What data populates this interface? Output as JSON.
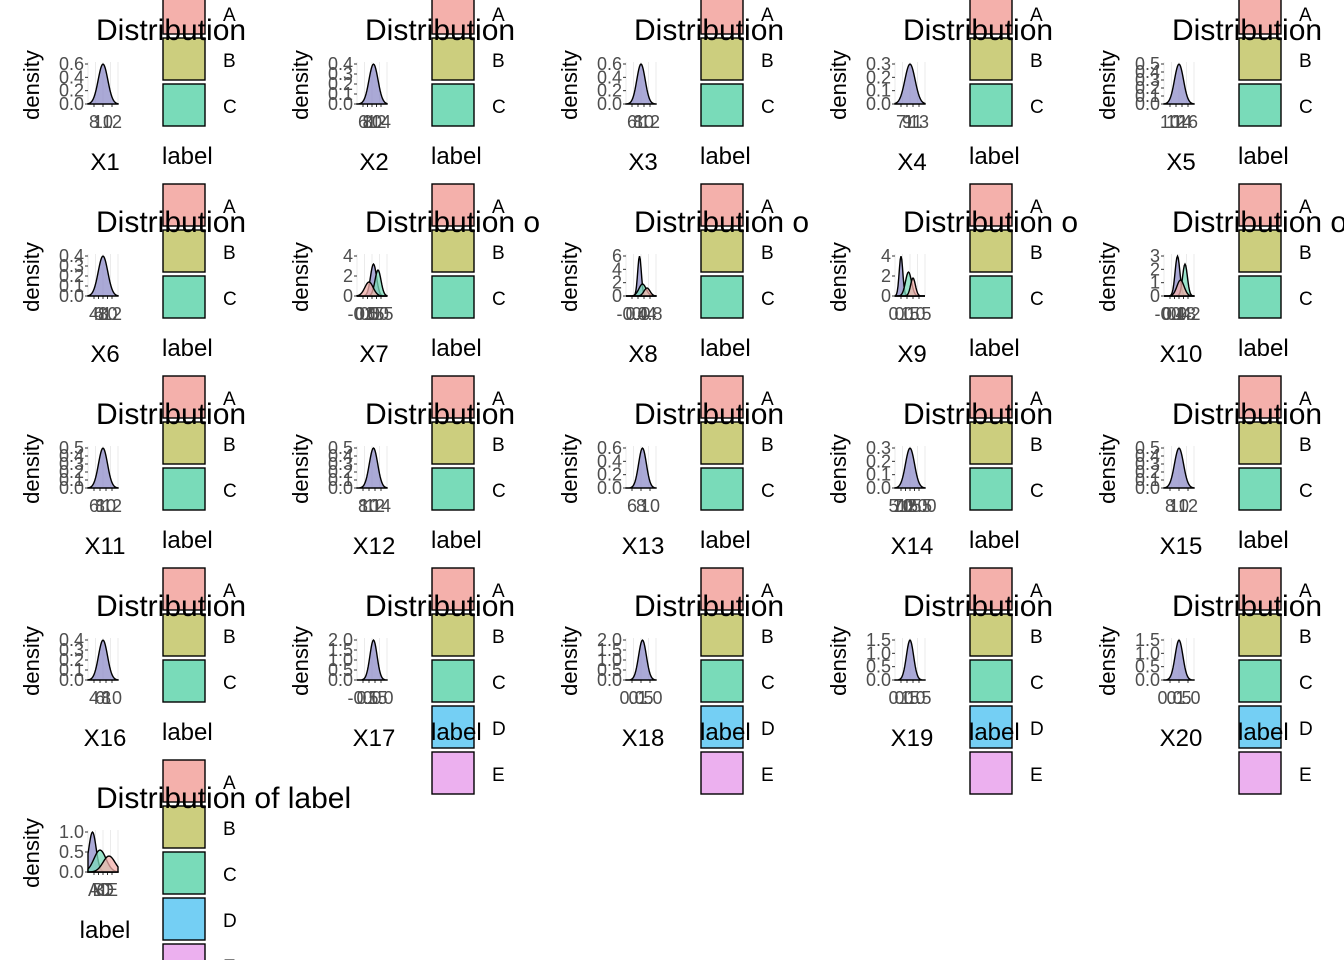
{
  "colors": {
    "A": "#f4b0ab",
    "B": "#ccce7e",
    "C": "#79dbb9",
    "D": "#74cff4",
    "E": "#ecb0ef",
    "density_fill": "#8e8cc8",
    "grid": "#ebebeb",
    "ink": "#000000",
    "tick_text": "#4d4d4d"
  },
  "chart_data": [
    {
      "type": "area",
      "title": "Distribution",
      "xlabel": "X1",
      "ylabel": "density",
      "yticks": [
        "0.0",
        "0.2",
        "0.4",
        "0.6"
      ],
      "xticks": [
        "8",
        "10",
        "12"
      ],
      "legend_title": "label",
      "legend": [
        "A",
        "B",
        "C"
      ]
    },
    {
      "type": "area",
      "title": "Distribution",
      "xlabel": "X2",
      "ylabel": "density",
      "yticks": [
        "0.0",
        "0.1",
        "0.2",
        "0.3",
        "0.4"
      ],
      "xticks": [
        "6",
        "8",
        "10",
        "12",
        "14"
      ],
      "legend_title": "label",
      "legend": [
        "A",
        "B",
        "C"
      ]
    },
    {
      "type": "area",
      "title": "Distribution",
      "xlabel": "X3",
      "ylabel": "density",
      "yticks": [
        "0.0",
        "0.2",
        "0.4",
        "0.6"
      ],
      "xticks": [
        "6",
        "8",
        "10",
        "12"
      ],
      "legend_title": "label",
      "legend": [
        "A",
        "B",
        "C"
      ]
    },
    {
      "type": "area",
      "title": "Distribution",
      "xlabel": "X4",
      "ylabel": "density",
      "yticks": [
        "0.0",
        "0.1",
        "0.2",
        "0.3"
      ],
      "xticks": [
        "7",
        "9",
        "11",
        "13"
      ],
      "legend_title": "label",
      "legend": [
        "A",
        "B",
        "C"
      ]
    },
    {
      "type": "area",
      "title": "Distribution",
      "xlabel": "X5",
      "ylabel": "density",
      "yticks": [
        "0.0",
        "0.1",
        "0.2",
        "0.3",
        "0.4",
        "0.5"
      ],
      "xticks": [
        "10",
        "12",
        "14",
        "16"
      ],
      "legend_title": "label",
      "legend": [
        "A",
        "B",
        "C"
      ]
    },
    {
      "type": "area",
      "title": "Distribution",
      "xlabel": "X6",
      "ylabel": "density",
      "yticks": [
        "0.0",
        "0.1",
        "0.2",
        "0.3",
        "0.4"
      ],
      "xticks": [
        "4",
        "6",
        "8",
        "10",
        "12"
      ],
      "legend_title": "label",
      "legend": [
        "A",
        "B",
        "C"
      ]
    },
    {
      "type": "area",
      "title": "Distribution o",
      "xlabel": "X7",
      "ylabel": "density",
      "yticks": [
        "0",
        "2",
        "4"
      ],
      "xticks": [
        "-0.5",
        "0.0",
        "0.5",
        "1.0",
        "1.5"
      ],
      "legend_title": "label",
      "legend": [
        "A",
        "B",
        "C"
      ]
    },
    {
      "type": "area",
      "title": "Distribution o",
      "xlabel": "X8",
      "ylabel": "density",
      "yticks": [
        "0",
        "2",
        "4",
        "6"
      ],
      "xticks": [
        "-0.4",
        "0.0",
        "0.4",
        "0.8"
      ],
      "legend_title": "label",
      "legend": [
        "A",
        "B",
        "C"
      ]
    },
    {
      "type": "area",
      "title": "Distribution o",
      "xlabel": "X9",
      "ylabel": "density",
      "yticks": [
        "0",
        "2",
        "4"
      ],
      "xticks": [
        "0.0",
        "0.5",
        "1.0",
        "1.5"
      ],
      "legend_title": "label",
      "legend": [
        "A",
        "B",
        "C"
      ]
    },
    {
      "type": "area",
      "title": "Distribution o",
      "xlabel": "X10",
      "ylabel": "density",
      "yticks": [
        "0",
        "1",
        "2",
        "3"
      ],
      "xticks": [
        "-0.4",
        "0.0",
        "0.4",
        "0.8",
        "1.2"
      ],
      "legend_title": "label",
      "legend": [
        "A",
        "B",
        "C"
      ]
    },
    {
      "type": "area",
      "title": "Distribution",
      "xlabel": "X11",
      "ylabel": "density",
      "yticks": [
        "0.0",
        "0.1",
        "0.2",
        "0.3",
        "0.4",
        "0.5"
      ],
      "xticks": [
        "6",
        "8",
        "10",
        "12"
      ],
      "legend_title": "label",
      "legend": [
        "A",
        "B",
        "C"
      ]
    },
    {
      "type": "area",
      "title": "Distribution",
      "xlabel": "X12",
      "ylabel": "density",
      "yticks": [
        "0.0",
        "0.1",
        "0.2",
        "0.3",
        "0.4",
        "0.5"
      ],
      "xticks": [
        "8",
        "10",
        "12",
        "14"
      ],
      "legend_title": "label",
      "legend": [
        "A",
        "B",
        "C"
      ]
    },
    {
      "type": "area",
      "title": "Distribution",
      "xlabel": "X13",
      "ylabel": "density",
      "yticks": [
        "0.0",
        "0.2",
        "0.4",
        "0.6"
      ],
      "xticks": [
        "6",
        "8",
        "10"
      ],
      "legend_title": "label",
      "legend": [
        "A",
        "B",
        "C"
      ]
    },
    {
      "type": "area",
      "title": "Distribution",
      "xlabel": "X14",
      "ylabel": "density",
      "yticks": [
        "0.0",
        "0.1",
        "0.2",
        "0.3"
      ],
      "xticks": [
        "5.0",
        "7.5",
        "10.0",
        "12.5",
        "15.0"
      ],
      "legend_title": "label",
      "legend": [
        "A",
        "B",
        "C"
      ]
    },
    {
      "type": "area",
      "title": "Distribution",
      "xlabel": "X15",
      "ylabel": "density",
      "yticks": [
        "0.0",
        "0.1",
        "0.2",
        "0.3",
        "0.4",
        "0.5"
      ],
      "xticks": [
        "8",
        "10",
        "12"
      ],
      "legend_title": "label",
      "legend": [
        "A",
        "B",
        "C"
      ]
    },
    {
      "type": "area",
      "title": "Distribution",
      "xlabel": "X16",
      "ylabel": "density",
      "yticks": [
        "0.0",
        "0.1",
        "0.2",
        "0.3",
        "0.4"
      ],
      "xticks": [
        "4",
        "6",
        "8",
        "10"
      ],
      "legend_title": "label",
      "legend": [
        "A",
        "B",
        "C"
      ]
    },
    {
      "type": "area",
      "title": "Distribution",
      "xlabel": "X17",
      "ylabel": "density",
      "yticks": [
        "0.0",
        "0.5",
        "1.0",
        "1.5",
        "2.0"
      ],
      "xticks": [
        "-0.5",
        "0.0",
        "0.5",
        "1.0"
      ],
      "legend_title": "label",
      "legend": [
        "A",
        "B",
        "C",
        "D",
        "E"
      ]
    },
    {
      "type": "area",
      "title": "Distribution",
      "xlabel": "X18",
      "ylabel": "density",
      "yticks": [
        "0.0",
        "0.5",
        "1.0",
        "1.5",
        "2.0"
      ],
      "xticks": [
        "0.0",
        "0.5",
        "1.0"
      ],
      "legend_title": "label",
      "legend": [
        "A",
        "B",
        "C",
        "D",
        "E"
      ]
    },
    {
      "type": "area",
      "title": "Distribution",
      "xlabel": "X19",
      "ylabel": "density",
      "yticks": [
        "0.0",
        "0.5",
        "1.0",
        "1.5"
      ],
      "xticks": [
        "0.0",
        "0.5",
        "1.0",
        "1.5"
      ],
      "legend_title": "label",
      "legend": [
        "A",
        "B",
        "C",
        "D",
        "E"
      ]
    },
    {
      "type": "area",
      "title": "Distribution",
      "xlabel": "X20",
      "ylabel": "density",
      "yticks": [
        "0.0",
        "0.5",
        "1.0",
        "1.5"
      ],
      "xticks": [
        "0.0",
        "0.5",
        "1.0"
      ],
      "legend_title": "label",
      "legend": [
        "A",
        "B",
        "C",
        "D",
        "E"
      ]
    },
    {
      "type": "area",
      "title": "Distribution of label",
      "xlabel": "label",
      "ylabel": "density",
      "yticks": [
        "0.0",
        "0.5",
        "1.0"
      ],
      "xticks": [
        "A",
        "B",
        "C",
        "D",
        "E"
      ],
      "legend_title": "",
      "legend": [
        "A",
        "B",
        "C",
        "D",
        "E"
      ]
    }
  ]
}
